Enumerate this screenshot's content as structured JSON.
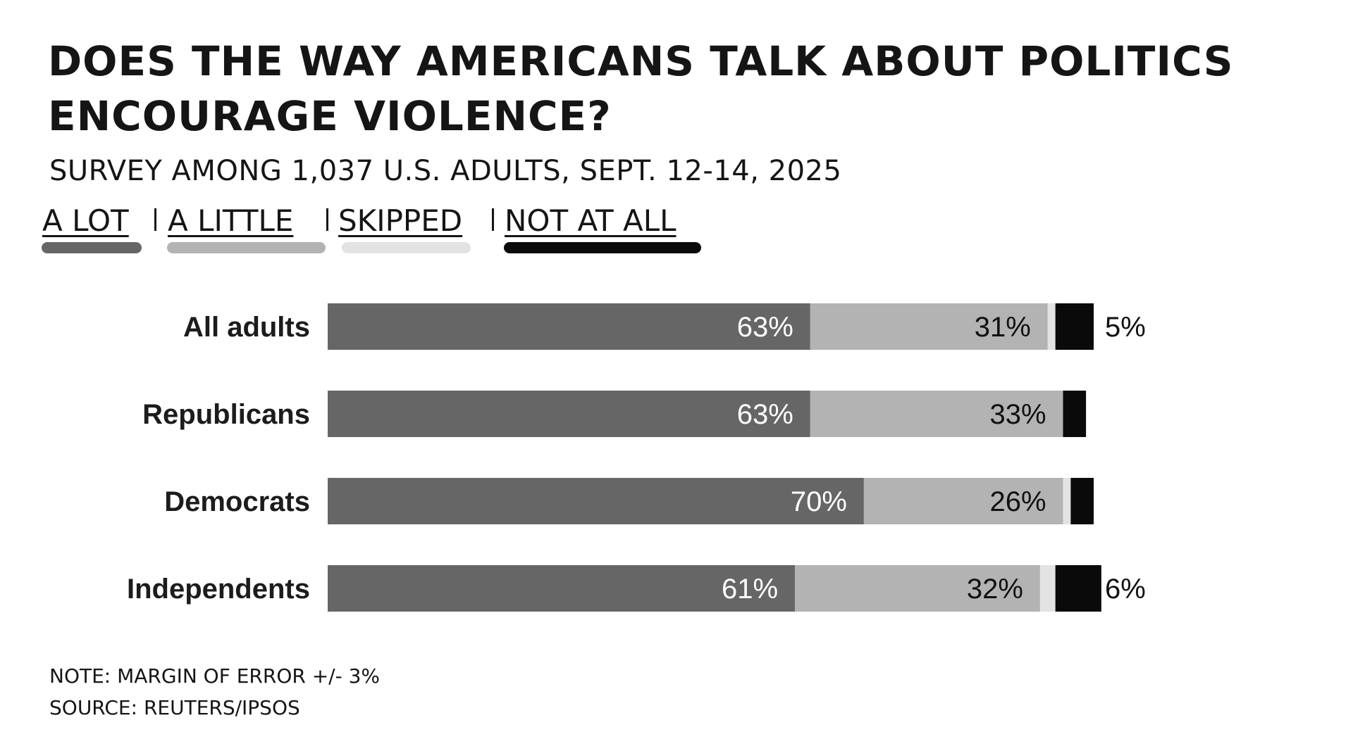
{
  "chart_data": {
    "type": "bar",
    "orientation": "horizontal",
    "stacked": true,
    "title": "DOES THE WAY AMERICANS TALK ABOUT POLITICS ENCOURAGE VIOLENCE?",
    "subtitle": "SURVEY AMONG 1,037 U.S. ADULTS, SEPT. 12-14, 2025",
    "categories": [
      "All adults",
      "Republicans",
      "Democrats",
      "Independents"
    ],
    "series": [
      {
        "name": "A LOT",
        "color": "#666666",
        "values": [
          63,
          63,
          70,
          61
        ],
        "labels": [
          "63%",
          "63%",
          "70%",
          "61%"
        ],
        "label_color": "#ffffff"
      },
      {
        "name": "A LITTLE",
        "color": "#b3b3b3",
        "values": [
          31,
          33,
          26,
          32
        ],
        "labels": [
          "31%",
          "33%",
          "26%",
          "32%"
        ],
        "label_color": "#111111"
      },
      {
        "name": "SKIPPED",
        "color": "#e3e3e3",
        "values": [
          1,
          0,
          1,
          2
        ],
        "labels": [
          "",
          "",
          "",
          ""
        ]
      },
      {
        "name": "NOT AT ALL",
        "color": "#0a0a0a",
        "values": [
          5,
          3,
          3,
          6
        ],
        "labels": [
          "5%",
          "",
          "",
          "6%"
        ]
      }
    ],
    "xlim": [
      0,
      100
    ],
    "grid": false,
    "legend": "top-left",
    "notes": [
      "NOTE: MARGIN OF ERROR +/- 3%",
      "SOURCE: REUTERS/IPSOS"
    ]
  }
}
